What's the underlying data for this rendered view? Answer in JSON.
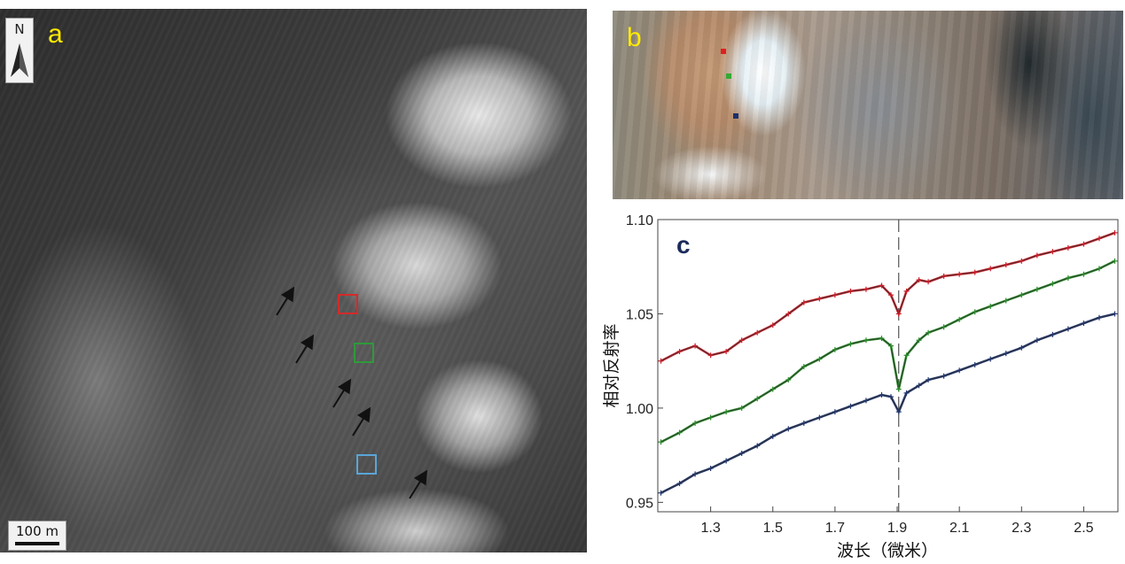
{
  "panel_a": {
    "letter": "a",
    "north_label": "N",
    "scale_label": "100 m",
    "roi_colors": [
      "#d42a2a",
      "#2e9a3a",
      "#5aa6d8"
    ]
  },
  "panel_b": {
    "letter": "b",
    "pixel_colors": [
      "#e02020",
      "#33aa33",
      "#1e2f6a"
    ]
  },
  "panel_c": {
    "letter": "c",
    "colors": {
      "red": "#c8202a",
      "green": "#2a8a2a",
      "blue": "#23376e",
      "mean": "#333333",
      "letter": "#1c2a5c"
    }
  },
  "chart_data": {
    "type": "line",
    "title": "",
    "xlabel": "波长（微米）",
    "ylabel": "相对反射率",
    "xlim": [
      1.13,
      2.61
    ],
    "ylim": [
      0.945,
      1.1
    ],
    "xticks": [
      1.3,
      1.5,
      1.7,
      1.9,
      2.1,
      2.3,
      2.5
    ],
    "xtick_labels": [
      "1.3",
      "1.5",
      "1.7",
      "1.9",
      "2.1",
      "2.3",
      "2.5"
    ],
    "yticks": [
      0.95,
      1.0,
      1.05,
      1.1
    ],
    "ytick_labels": [
      "0.95",
      "1.00",
      "1.05",
      "1.10"
    ],
    "grid": false,
    "vline_x": 1.905,
    "series": [
      {
        "color": "red",
        "x": [
          1.14,
          1.2,
          1.25,
          1.3,
          1.35,
          1.4,
          1.45,
          1.5,
          1.55,
          1.6,
          1.65,
          1.7,
          1.75,
          1.8,
          1.85,
          1.88,
          1.905,
          1.93,
          1.97,
          2.0,
          2.05,
          2.1,
          2.15,
          2.2,
          2.25,
          2.3,
          2.35,
          2.4,
          2.45,
          2.5,
          2.55,
          2.6
        ],
        "y": [
          1.025,
          1.03,
          1.033,
          1.028,
          1.03,
          1.036,
          1.04,
          1.044,
          1.05,
          1.056,
          1.058,
          1.06,
          1.062,
          1.063,
          1.065,
          1.06,
          1.05,
          1.062,
          1.068,
          1.067,
          1.07,
          1.071,
          1.072,
          1.074,
          1.076,
          1.078,
          1.081,
          1.083,
          1.085,
          1.087,
          1.09,
          1.093
        ]
      },
      {
        "color": "green",
        "x": [
          1.14,
          1.2,
          1.25,
          1.3,
          1.35,
          1.4,
          1.45,
          1.5,
          1.55,
          1.6,
          1.65,
          1.7,
          1.75,
          1.8,
          1.85,
          1.88,
          1.905,
          1.93,
          1.97,
          2.0,
          2.05,
          2.1,
          2.15,
          2.2,
          2.25,
          2.3,
          2.35,
          2.4,
          2.45,
          2.5,
          2.55,
          2.6
        ],
        "y": [
          0.982,
          0.987,
          0.992,
          0.995,
          0.998,
          1.0,
          1.005,
          1.01,
          1.015,
          1.022,
          1.026,
          1.031,
          1.034,
          1.036,
          1.037,
          1.033,
          1.01,
          1.028,
          1.036,
          1.04,
          1.043,
          1.047,
          1.051,
          1.054,
          1.057,
          1.06,
          1.063,
          1.066,
          1.069,
          1.071,
          1.074,
          1.078
        ]
      },
      {
        "color": "blue",
        "x": [
          1.14,
          1.2,
          1.25,
          1.3,
          1.35,
          1.4,
          1.45,
          1.5,
          1.55,
          1.6,
          1.65,
          1.7,
          1.75,
          1.8,
          1.85,
          1.88,
          1.905,
          1.93,
          1.97,
          2.0,
          2.05,
          2.1,
          2.15,
          2.2,
          2.25,
          2.3,
          2.35,
          2.4,
          2.45,
          2.5,
          2.55,
          2.6
        ],
        "y": [
          0.955,
          0.96,
          0.965,
          0.968,
          0.972,
          0.976,
          0.98,
          0.985,
          0.989,
          0.992,
          0.995,
          0.998,
          1.001,
          1.004,
          1.007,
          1.006,
          0.998,
          1.008,
          1.012,
          1.015,
          1.017,
          1.02,
          1.023,
          1.026,
          1.029,
          1.032,
          1.036,
          1.039,
          1.042,
          1.045,
          1.048,
          1.05
        ]
      }
    ]
  }
}
